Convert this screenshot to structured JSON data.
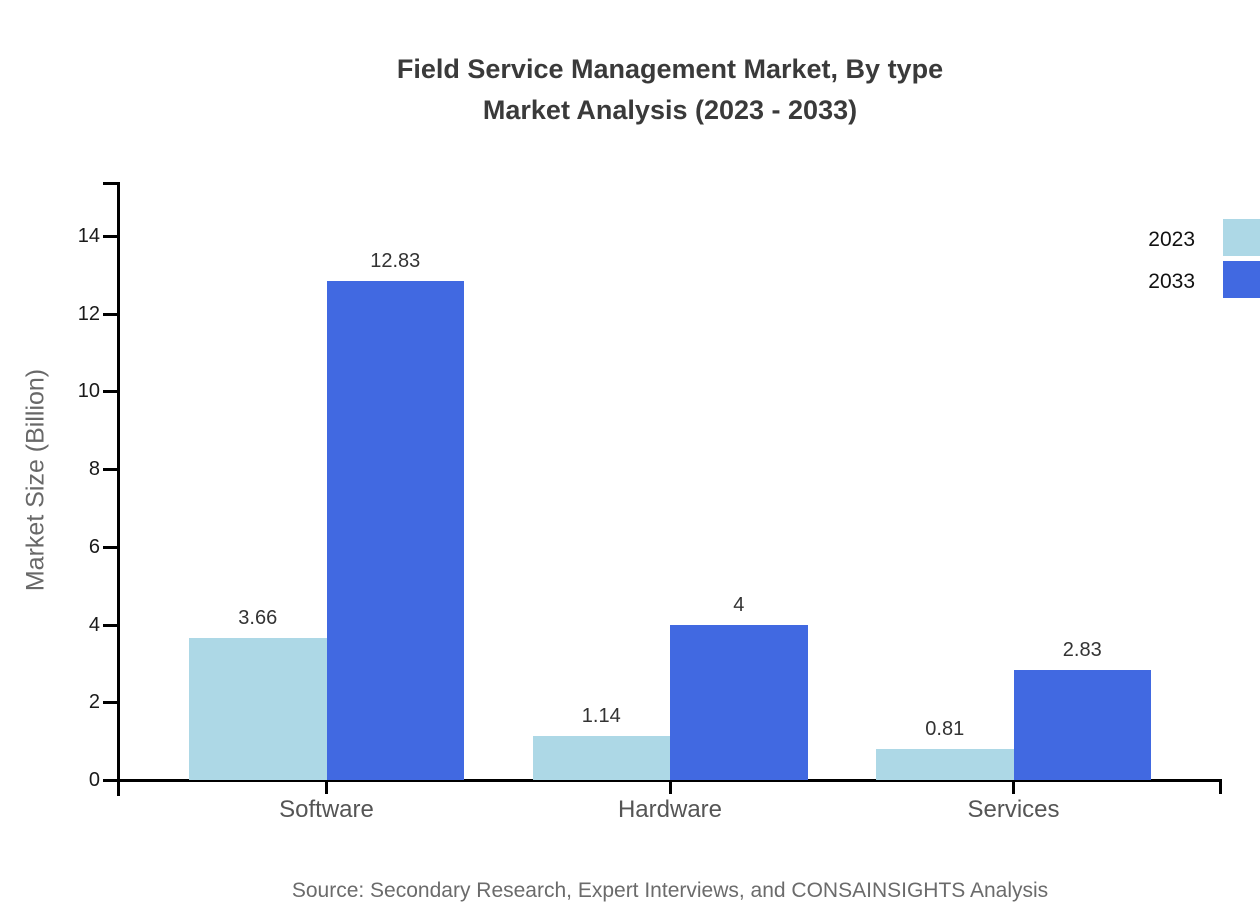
{
  "title": {
    "line1": "Field Service Management Market, By type",
    "line2": "Market Analysis (2023 - 2033)"
  },
  "y_axis_label": "Market Size (Billion)",
  "source": "Source: Secondary Research, Expert Interviews, and CONSAINSIGHTS Analysis",
  "legend": [
    {
      "label": "2023",
      "color": "#ADD8E6"
    },
    {
      "label": "2033",
      "color": "#4169E1"
    }
  ],
  "colors": {
    "axis": "#000000",
    "series_2023": "#ADD8E6",
    "series_2033": "#4169E1",
    "title_text": "#3a3a3a",
    "tick_text": "#1a1a1a",
    "category_text": "#555555",
    "source_text": "#6b6b6b"
  },
  "chart_data": {
    "type": "bar",
    "title": "Field Service Management Market, By type — Market Analysis (2023 - 2033)",
    "categories": [
      "Software",
      "Hardware",
      "Services"
    ],
    "series": [
      {
        "name": "2023",
        "color": "#ADD8E6",
        "values": [
          3.66,
          1.14,
          0.81
        ]
      },
      {
        "name": "2033",
        "color": "#4169E1",
        "values": [
          12.83,
          4,
          2.83
        ]
      }
    ],
    "value_labels": [
      [
        "3.66",
        "1.14",
        "0.81"
      ],
      [
        "12.83",
        "4",
        "2.83"
      ]
    ],
    "xlabel": "",
    "ylabel": "Market Size (Billion)",
    "ylim": [
      0,
      15.4
    ],
    "yticks": [
      0,
      2,
      4,
      6,
      8,
      10,
      12,
      14
    ],
    "grid": false,
    "legend_position": "top-right",
    "bar_value_labels_shown": true
  }
}
